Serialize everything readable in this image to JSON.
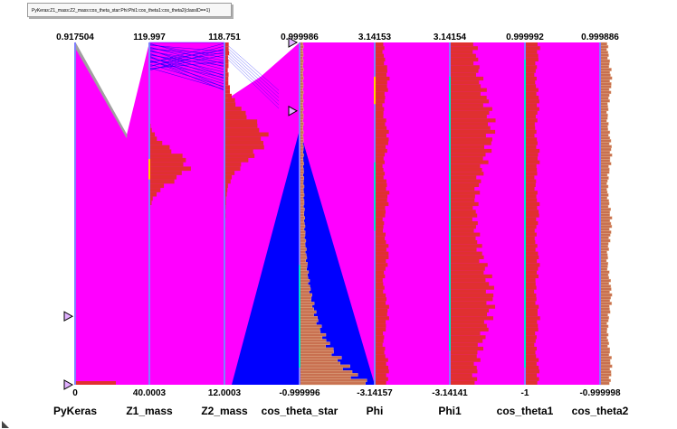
{
  "canvas_title": "PyKeras:Z1_mass:Z2_mass:cos_theta_star:Phi:Phi1:cos_theta1:cos_theta2{classID==1}",
  "chart_data": {
    "type": "parallel_coordinates",
    "title": "PyKeras:Z1_mass:Z2_mass:cos_theta_star:Phi:Phi1:cos_theta1:cos_theta2{classID==1}",
    "axes": [
      {
        "name": "PyKeras",
        "min_label": "0",
        "max_label": "0.917504",
        "min": 0,
        "max": 0.917504
      },
      {
        "name": "Z1_mass",
        "min_label": "40.0003",
        "max_label": "119.997",
        "min": 40.0003,
        "max": 119.997
      },
      {
        "name": "Z2_mass",
        "min_label": "12.0003",
        "max_label": "118.751",
        "min": 12.0003,
        "max": 118.751
      },
      {
        "name": "cos_theta_star",
        "min_label": "-0.999996",
        "max_label": "0.999986",
        "min": -0.999996,
        "max": 0.999986
      },
      {
        "name": "Phi",
        "min_label": "-3.14157",
        "max_label": "3.14153",
        "min": -3.14157,
        "max": 3.14153
      },
      {
        "name": "Phi1",
        "min_label": "-3.14141",
        "max_label": "3.14154",
        "min": -3.14141,
        "max": 3.14154
      },
      {
        "name": "cos_theta1",
        "min_label": "-1",
        "max_label": "0.999992",
        "min": -1,
        "max": 0.999992
      },
      {
        "name": "cos_theta2",
        "min_label": "-0.999998",
        "max_label": "0.999886",
        "min": -0.999998,
        "max": 0.999886
      }
    ],
    "range_cut_markers": {
      "axis": "PyKeras",
      "cut_values": [
        0.0,
        0.1
      ],
      "axis2": "cos_theta_star",
      "cut_value2": 0.8
    },
    "colors": {
      "main_lines": "#ff00ff",
      "selected_lines": "#0000ff",
      "secondary_lines": "#a0a0a0",
      "histogram": "#e03030",
      "hatched_histogram": "#c87050",
      "axis": "#8080ff"
    }
  }
}
